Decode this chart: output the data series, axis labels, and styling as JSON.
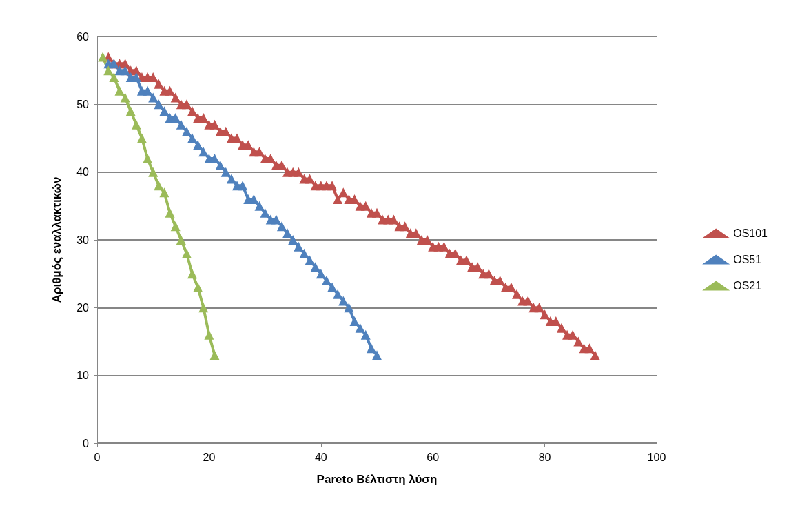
{
  "chart_data": {
    "type": "line",
    "xlabel": "Pareto Βέλτιστη λύση",
    "ylabel": "Αριθμός εναλλακτικών",
    "xlim": [
      0,
      100
    ],
    "xticks": [
      0,
      20,
      40,
      60,
      80,
      100
    ],
    "ylim": [
      0,
      60
    ],
    "yticks": [
      0,
      10,
      20,
      30,
      40,
      50,
      60
    ],
    "grid": "y",
    "legend": "right",
    "marker": "triangle",
    "line_style": "solid",
    "series": [
      {
        "name": "OS101",
        "color": "#c0504d",
        "x": [
          2,
          3,
          4,
          5,
          6,
          7,
          8,
          9,
          10,
          11,
          12,
          13,
          14,
          15,
          16,
          17,
          18,
          19,
          20,
          21,
          22,
          23,
          24,
          25,
          26,
          27,
          28,
          29,
          30,
          31,
          32,
          33,
          34,
          35,
          36,
          37,
          38,
          39,
          40,
          41,
          42,
          43,
          44,
          45,
          46,
          47,
          48,
          49,
          50,
          51,
          52,
          53,
          54,
          55,
          56,
          57,
          58,
          59,
          60,
          61,
          62,
          63,
          64,
          65,
          66,
          67,
          68,
          69,
          70,
          71,
          72,
          73,
          74,
          75,
          76,
          77,
          78,
          79,
          80,
          81,
          82,
          83,
          84,
          85,
          86,
          87,
          88,
          89
        ],
        "values": [
          57,
          56,
          56,
          56,
          55,
          55,
          54,
          54,
          54,
          53,
          52,
          52,
          51,
          50,
          50,
          49,
          48,
          48,
          47,
          47,
          46,
          46,
          45,
          45,
          44,
          44,
          43,
          43,
          42,
          42,
          41,
          41,
          40,
          40,
          40,
          39,
          39,
          38,
          38,
          38,
          38,
          36,
          37,
          36,
          36,
          35,
          35,
          34,
          34,
          33,
          33,
          33,
          32,
          32,
          31,
          31,
          30,
          30,
          29,
          29,
          29,
          28,
          28,
          27,
          27,
          26,
          26,
          25,
          25,
          24,
          24,
          23,
          23,
          22,
          21,
          21,
          20,
          20,
          19,
          18,
          18,
          17,
          16,
          16,
          15,
          14,
          14,
          13
        ]
      },
      {
        "name": "OS51",
        "color": "#4f81bd",
        "x": [
          2,
          3,
          4,
          5,
          6,
          7,
          8,
          9,
          10,
          11,
          12,
          13,
          14,
          15,
          16,
          17,
          18,
          19,
          20,
          21,
          22,
          23,
          24,
          25,
          26,
          27,
          28,
          29,
          30,
          31,
          32,
          33,
          34,
          35,
          36,
          37,
          38,
          39,
          40,
          41,
          42,
          43,
          44,
          45,
          46,
          47,
          48,
          49,
          50
        ],
        "values": [
          56,
          56,
          55,
          55,
          54,
          54,
          52,
          52,
          51,
          50,
          49,
          48,
          48,
          47,
          46,
          45,
          44,
          43,
          42,
          42,
          41,
          40,
          39,
          38,
          38,
          36,
          36,
          35,
          34,
          33,
          33,
          32,
          31,
          30,
          29,
          28,
          27,
          26,
          25,
          24,
          23,
          22,
          21,
          20,
          18,
          17,
          16,
          14,
          13
        ]
      },
      {
        "name": "OS21",
        "color": "#9bbb59",
        "x": [
          1,
          2,
          3,
          4,
          5,
          6,
          7,
          8,
          9,
          10,
          11,
          12,
          13,
          14,
          15,
          16,
          17,
          18,
          19,
          20,
          21
        ],
        "values": [
          57,
          55,
          54,
          52,
          51,
          49,
          47,
          45,
          42,
          40,
          38,
          37,
          34,
          32,
          30,
          28,
          25,
          23,
          20,
          16,
          13
        ]
      }
    ]
  }
}
